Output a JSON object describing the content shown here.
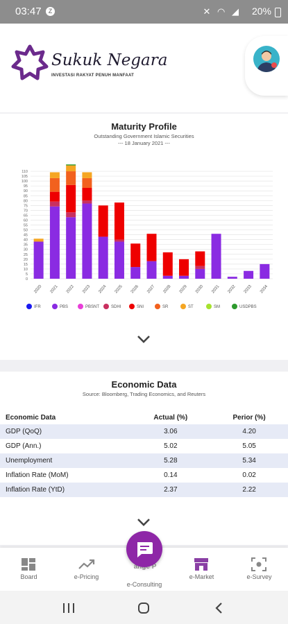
{
  "status_bar": {
    "time": "03:47",
    "battery": "20%"
  },
  "brand": {
    "title": "Sukuk Negara",
    "tagline": "INVESTASI RAKYAT PENUH MANFAAT"
  },
  "maturity": {
    "title": "Maturity Profile",
    "subtitle": "Outstanding Government Islamic Securities",
    "date": "--- 18 January 2021 ---"
  },
  "chart_data": {
    "type": "bar",
    "stacked": true,
    "title": "Maturity Profile",
    "categories": [
      "2020",
      "2021",
      "2022",
      "2023",
      "2024",
      "2025",
      "2026",
      "2027",
      "2028",
      "2029",
      "2030",
      "2031",
      "2032",
      "2033",
      "2034"
    ],
    "ylim": [
      0,
      115
    ],
    "y_ticks": [
      0,
      5,
      10,
      15,
      20,
      25,
      30,
      35,
      40,
      45,
      50,
      55,
      60,
      65,
      70,
      75,
      80,
      85,
      90,
      95,
      100,
      105,
      110
    ],
    "grid": true,
    "legend_position": "bottom",
    "series": [
      {
        "name": "IFR",
        "color": "#1a1af0",
        "values": [
          0,
          0,
          0,
          0,
          0,
          0,
          0,
          0,
          0,
          0,
          0,
          0,
          0,
          0,
          0
        ]
      },
      {
        "name": "PBS",
        "color": "#8a2be2",
        "values": [
          38,
          74,
          63,
          77,
          43,
          38,
          12,
          18,
          3,
          3,
          10,
          46,
          2,
          8,
          15
        ]
      },
      {
        "name": "PBSNT",
        "color": "#e83fd8",
        "values": [
          0,
          0,
          0,
          0,
          0,
          0,
          0,
          0,
          0,
          0,
          0,
          0,
          0,
          0,
          0
        ]
      },
      {
        "name": "SDHI",
        "color": "#c9305f",
        "values": [
          0,
          5,
          5,
          3,
          0,
          2,
          0,
          0,
          0,
          0,
          3,
          0,
          0,
          0,
          0
        ]
      },
      {
        "name": "SNI",
        "color": "#ee0000",
        "values": [
          0,
          10,
          28,
          13,
          32,
          38,
          24,
          28,
          24,
          17,
          15,
          0,
          0,
          0,
          0
        ]
      },
      {
        "name": "SR",
        "color": "#f2611e",
        "values": [
          0,
          14,
          14,
          10,
          0,
          0,
          0,
          0,
          0,
          0,
          0,
          0,
          0,
          0,
          0
        ]
      },
      {
        "name": "ST",
        "color": "#f5a623",
        "values": [
          3,
          6,
          6,
          6,
          0,
          0,
          0,
          0,
          0,
          0,
          0,
          0,
          0,
          0,
          0
        ]
      },
      {
        "name": "SM",
        "color": "#a6e22e",
        "values": [
          0,
          0,
          0,
          0,
          0,
          0,
          0,
          0,
          0,
          0,
          0,
          0,
          0,
          0,
          0
        ]
      },
      {
        "name": "USDPBS",
        "color": "#2d9a2d",
        "values": [
          0,
          0,
          1,
          0,
          0,
          0,
          0,
          0,
          0,
          0,
          0,
          0,
          0,
          0,
          0
        ]
      }
    ]
  },
  "econ": {
    "title": "Economic Data",
    "source": "Source: Bloomberg, Trading Economics, and Reuters",
    "headers": [
      "Economic Data",
      "Actual (%)",
      "Perior (%)"
    ],
    "rows": [
      [
        "GDP (QoQ)",
        "3.06",
        "4.20"
      ],
      [
        "GDP (Ann.)",
        "5.02",
        "5.05"
      ],
      [
        "Unemployment",
        "5.28",
        "5.34"
      ],
      [
        "Inflation Rate (MoM)",
        "0.14",
        "0.02"
      ],
      [
        "Inflation Rate (YtD)",
        "2.37",
        "2.22"
      ]
    ]
  },
  "nav": {
    "items": [
      {
        "label": "Board",
        "icon": "dashboard-icon"
      },
      {
        "label": "e-Pricing",
        "icon": "trend-icon"
      },
      {
        "label": "e-Consulting",
        "icon": "chat-icon"
      },
      {
        "label": "e-Market",
        "icon": "store-icon",
        "active": true
      },
      {
        "label": "e-Survey",
        "icon": "scan-icon"
      }
    ],
    "fab_underlay": "ange P",
    "active_color": "#8a3fa5"
  }
}
